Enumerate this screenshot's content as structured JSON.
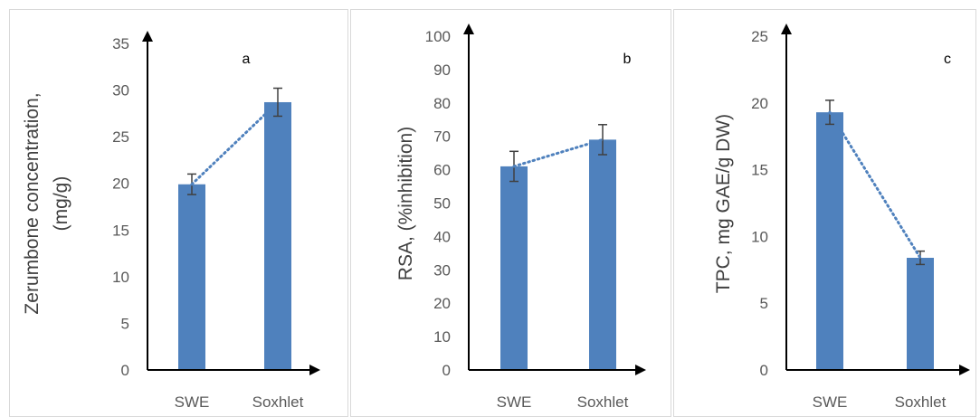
{
  "colors": {
    "bar": "#4f81bd",
    "axis": "#000000",
    "errorbar": "#404040",
    "trend": "#4f81bd"
  },
  "chart_data": [
    {
      "type": "bar",
      "panel_label": "a",
      "categories": [
        "SWE",
        "Soxhlet"
      ],
      "values": [
        19.9,
        28.7
      ],
      "errors": [
        1.1,
        1.5
      ],
      "ylabel_lines": [
        "Zerumbone concentration,",
        "(mg/g)"
      ],
      "ylim": [
        0,
        35
      ],
      "yticks": [
        0,
        5,
        10,
        15,
        20,
        25,
        30,
        35
      ],
      "trendline": "dotted"
    },
    {
      "type": "bar",
      "panel_label": "b",
      "categories": [
        "SWE",
        "Soxhlet"
      ],
      "values": [
        61,
        69
      ],
      "errors": [
        4.5,
        4.5
      ],
      "ylabel_lines": [
        "RSA, (%inhibition)"
      ],
      "ylim": [
        0,
        100
      ],
      "yticks": [
        0,
        10,
        20,
        30,
        40,
        50,
        60,
        70,
        80,
        90,
        100
      ],
      "trendline": "dotted"
    },
    {
      "type": "bar",
      "panel_label": "c",
      "categories": [
        "SWE",
        "Soxhlet"
      ],
      "values": [
        19.3,
        8.4
      ],
      "errors": [
        0.9,
        0.5
      ],
      "ylabel_lines": [
        "TPC, mg GAE/g DW)"
      ],
      "ylim": [
        0,
        25
      ],
      "yticks": [
        0,
        5,
        10,
        15,
        20,
        25
      ],
      "trendline": "dotted"
    }
  ]
}
